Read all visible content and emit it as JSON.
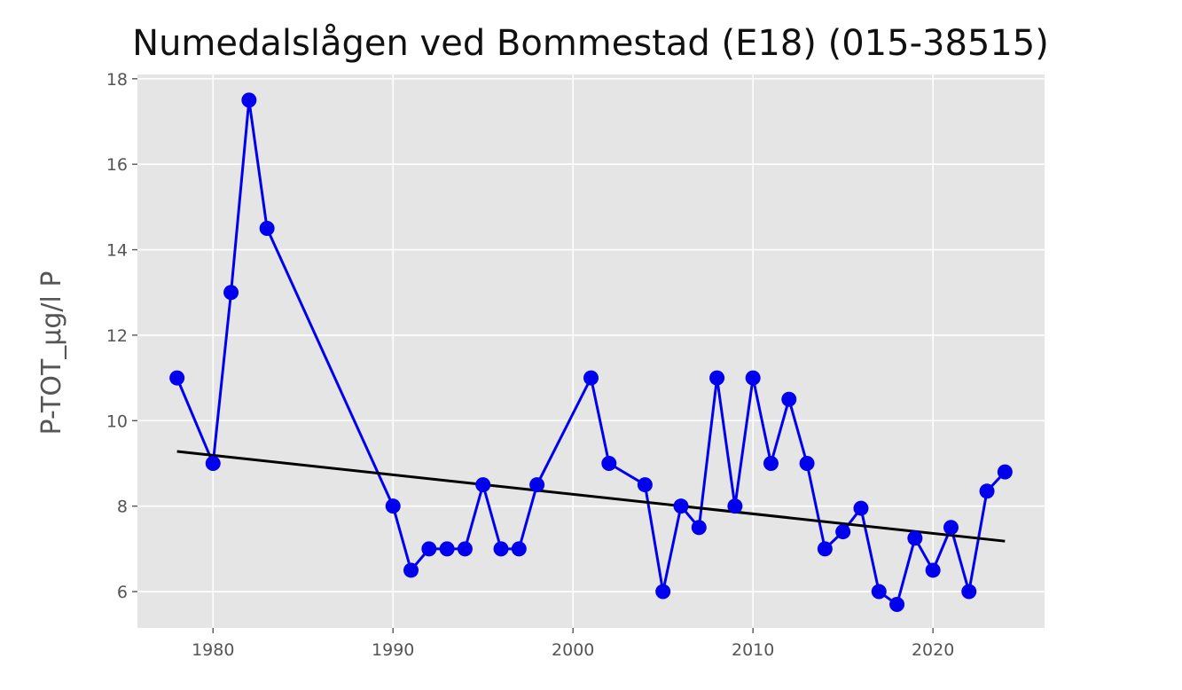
{
  "chart_data": {
    "type": "line",
    "title": "Numedalslågen ved Bommestad (E18) (015-38515)",
    "xlabel": "",
    "ylabel": "P-TOT_µg/l P",
    "xlim": [
      1975.8,
      2026.2
    ],
    "ylim": [
      5.15,
      18.1
    ],
    "x_ticks": [
      1980,
      1990,
      2000,
      2010,
      2020
    ],
    "y_ticks": [
      6,
      8,
      10,
      12,
      14,
      16,
      18
    ],
    "grid": true,
    "legend": "none",
    "series": [
      {
        "color": "#0000ee",
        "marker": "circle",
        "points": [
          {
            "x": 1978,
            "y": 11.0
          },
          {
            "x": 1980,
            "y": 9.0
          },
          {
            "x": 1981,
            "y": 13.0
          },
          {
            "x": 1982,
            "y": 17.5
          },
          {
            "x": 1983,
            "y": 14.5
          },
          {
            "x": 1990,
            "y": 8.0
          },
          {
            "x": 1991,
            "y": 6.5
          },
          {
            "x": 1992,
            "y": 7.0
          },
          {
            "x": 1993,
            "y": 7.0
          },
          {
            "x": 1994,
            "y": 7.0
          },
          {
            "x": 1995,
            "y": 8.5
          },
          {
            "x": 1996,
            "y": 7.0
          },
          {
            "x": 1997,
            "y": 7.0
          },
          {
            "x": 1998,
            "y": 8.5
          },
          {
            "x": 2001,
            "y": 11.0
          },
          {
            "x": 2002,
            "y": 9.0
          },
          {
            "x": 2004,
            "y": 8.5
          },
          {
            "x": 2005,
            "y": 6.0
          },
          {
            "x": 2006,
            "y": 8.0
          },
          {
            "x": 2007,
            "y": 7.5
          },
          {
            "x": 2008,
            "y": 11.0
          },
          {
            "x": 2009,
            "y": 8.0
          },
          {
            "x": 2010,
            "y": 11.0
          },
          {
            "x": 2011,
            "y": 9.0
          },
          {
            "x": 2012,
            "y": 10.5
          },
          {
            "x": 2013,
            "y": 9.0
          },
          {
            "x": 2014,
            "y": 7.0
          },
          {
            "x": 2015,
            "y": 7.4
          },
          {
            "x": 2016,
            "y": 7.95
          },
          {
            "x": 2017,
            "y": 6.0
          },
          {
            "x": 2018,
            "y": 5.7
          },
          {
            "x": 2019,
            "y": 7.25
          },
          {
            "x": 2020,
            "y": 6.5
          },
          {
            "x": 2021,
            "y": 7.5
          },
          {
            "x": 2022,
            "y": 6.0
          },
          {
            "x": 2023,
            "y": 8.35
          },
          {
            "x": 2024,
            "y": 8.8
          }
        ]
      }
    ],
    "trend_line": {
      "color": "#000000",
      "points": [
        {
          "x": 1978,
          "y": 9.28
        },
        {
          "x": 2024,
          "y": 7.18
        }
      ]
    }
  }
}
